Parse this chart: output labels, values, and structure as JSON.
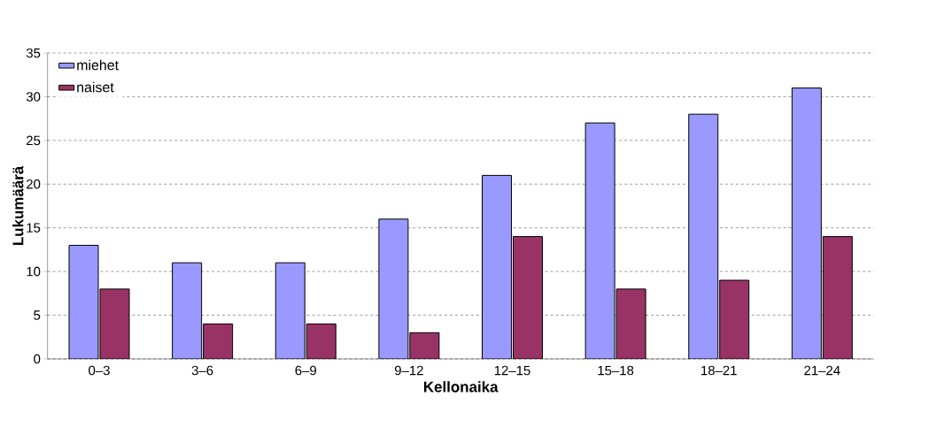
{
  "chart_data": {
    "type": "bar",
    "xlabel": "Kellonaika",
    "ylabel": "Lukumäärä",
    "categories": [
      "0–3",
      "3–6",
      "6–9",
      "9–12",
      "12–15",
      "15–18",
      "18–21",
      "21–24"
    ],
    "series": [
      {
        "name": "miehet",
        "color": "#9999ff",
        "values": [
          13,
          11,
          11,
          16,
          21,
          27,
          28,
          31
        ]
      },
      {
        "name": "naiset",
        "color": "#993366",
        "values": [
          8,
          4,
          4,
          3,
          14,
          8,
          9,
          14
        ]
      }
    ],
    "ylim": [
      0,
      35
    ],
    "yticks": [
      0,
      5,
      10,
      15,
      20,
      25,
      30,
      35
    ],
    "grid": "y",
    "legend": "top left"
  }
}
